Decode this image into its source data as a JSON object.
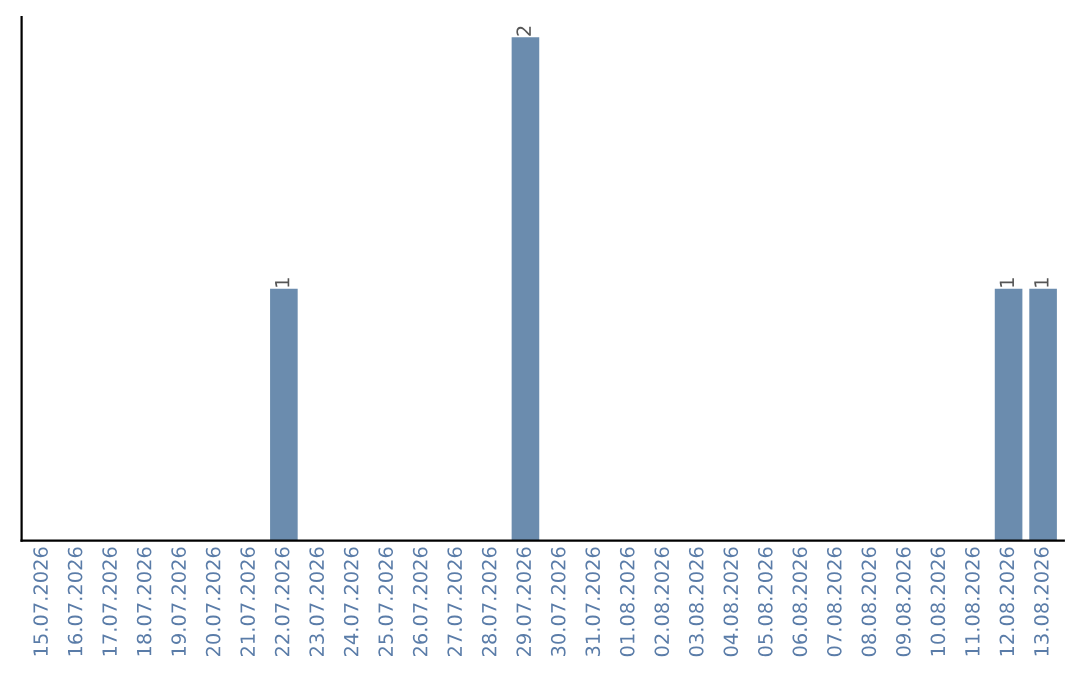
{
  "chart_data": {
    "type": "bar",
    "categories": [
      "15.07.2026",
      "16.07.2026",
      "17.07.2026",
      "18.07.2026",
      "19.07.2026",
      "20.07.2026",
      "21.07.2026",
      "22.07.2026",
      "23.07.2026",
      "24.07.2026",
      "25.07.2026",
      "26.07.2026",
      "27.07.2026",
      "28.07.2026",
      "29.07.2026",
      "30.07.2026",
      "31.07.2026",
      "01.08.2026",
      "02.08.2026",
      "03.08.2026",
      "04.08.2026",
      "05.08.2026",
      "06.08.2026",
      "07.08.2026",
      "08.08.2026",
      "09.08.2026",
      "10.08.2026",
      "11.08.2026",
      "12.08.2026",
      "13.08.2026"
    ],
    "values": [
      0,
      0,
      0,
      0,
      0,
      0,
      0,
      1,
      0,
      0,
      0,
      0,
      0,
      0,
      2,
      0,
      0,
      0,
      0,
      0,
      0,
      0,
      0,
      0,
      0,
      0,
      0,
      0,
      1,
      1
    ],
    "value_labels": [
      null,
      null,
      null,
      null,
      null,
      null,
      null,
      "1",
      null,
      null,
      null,
      null,
      null,
      null,
      "2",
      null,
      null,
      null,
      null,
      null,
      null,
      null,
      null,
      null,
      null,
      null,
      null,
      null,
      "1",
      "1"
    ],
    "color": "#6b8cae",
    "tick_labels": "x",
    "grid": false,
    "legend": false
  }
}
